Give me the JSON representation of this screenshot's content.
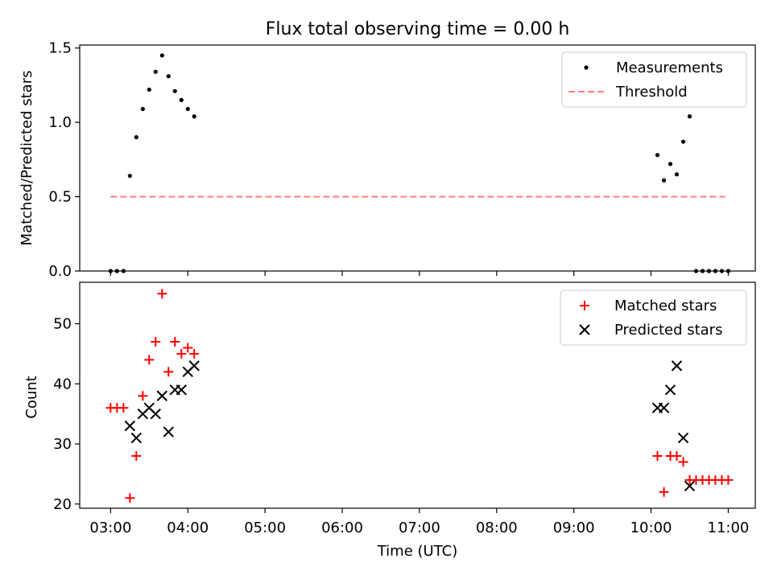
{
  "figure": {
    "title": "Flux total observing time = 0.00 h",
    "xlabel": "Time (UTC)",
    "xticks": [
      "03:00",
      "04:00",
      "05:00",
      "06:00",
      "07:00",
      "08:00",
      "09:00",
      "10:00",
      "11:00"
    ]
  },
  "chart_data": [
    {
      "type": "scatter",
      "title": "Flux total observing time = 0.00 h",
      "xlabel": "",
      "ylabel": "Matched/Predicted stars",
      "xlim": [
        2.6,
        11.35
      ],
      "ylim": [
        0,
        1.52
      ],
      "yticks": [
        0.0,
        0.5,
        1.0,
        1.5
      ],
      "ytick_labels": [
        "0.0",
        "0.5",
        "1.0",
        "1.5"
      ],
      "grid": false,
      "legend": "top-right",
      "series": [
        {
          "name": "Measurements",
          "kind": "points",
          "color": "#000000",
          "x": [
            3.0,
            3.083,
            3.167,
            3.25,
            3.333,
            3.417,
            3.5,
            3.583,
            3.667,
            3.75,
            3.833,
            3.917,
            4.0,
            4.083,
            10.083,
            10.167,
            10.25,
            10.333,
            10.417,
            10.5,
            10.583,
            10.667,
            10.75,
            10.833,
            10.917,
            11.0
          ],
          "y": [
            0.0,
            0.0,
            0.0,
            0.64,
            0.9,
            1.09,
            1.22,
            1.34,
            1.45,
            1.31,
            1.21,
            1.15,
            1.09,
            1.04,
            0.78,
            0.61,
            0.72,
            0.65,
            0.87,
            1.04,
            0.0,
            0.0,
            0.0,
            0.0,
            0.0,
            0.0
          ]
        },
        {
          "name": "Threshold",
          "kind": "dashed-line",
          "color": "#ff7f7f",
          "x": [
            3.0,
            10.96
          ],
          "y": [
            0.5,
            0.5
          ]
        }
      ]
    },
    {
      "type": "scatter",
      "title": "",
      "xlabel": "Time (UTC)",
      "ylabel": "Count",
      "xlim": [
        2.6,
        11.35
      ],
      "ylim": [
        19.3,
        56.9
      ],
      "yticks": [
        20,
        30,
        40,
        50
      ],
      "ytick_labels": [
        "20",
        "30",
        "40",
        "50"
      ],
      "grid": false,
      "legend": "top-right",
      "series": [
        {
          "name": "Matched stars",
          "kind": "plus",
          "color": "#ff0000",
          "x": [
            3.0,
            3.083,
            3.167,
            3.25,
            3.333,
            3.417,
            3.5,
            3.583,
            3.667,
            3.75,
            3.833,
            3.917,
            4.0,
            4.083,
            10.083,
            10.167,
            10.25,
            10.333,
            10.417,
            10.5,
            10.583,
            10.667,
            10.75,
            10.833,
            10.917,
            11.0
          ],
          "y": [
            36,
            36,
            36,
            21,
            28,
            38,
            44,
            47,
            55,
            42,
            47,
            45,
            46,
            45,
            28,
            22,
            28,
            28,
            27,
            24,
            24,
            24,
            24,
            24,
            24,
            24
          ]
        },
        {
          "name": "Predicted stars",
          "kind": "cross",
          "color": "#000000",
          "x": [
            3.25,
            3.333,
            3.417,
            3.5,
            3.583,
            3.667,
            3.75,
            3.833,
            3.917,
            4.0,
            4.083,
            10.083,
            10.167,
            10.25,
            10.333,
            10.417,
            10.5
          ],
          "y": [
            33,
            31,
            35,
            36,
            35,
            38,
            32,
            39,
            39,
            42,
            43,
            36,
            36,
            39,
            43,
            31,
            23
          ]
        }
      ]
    }
  ]
}
